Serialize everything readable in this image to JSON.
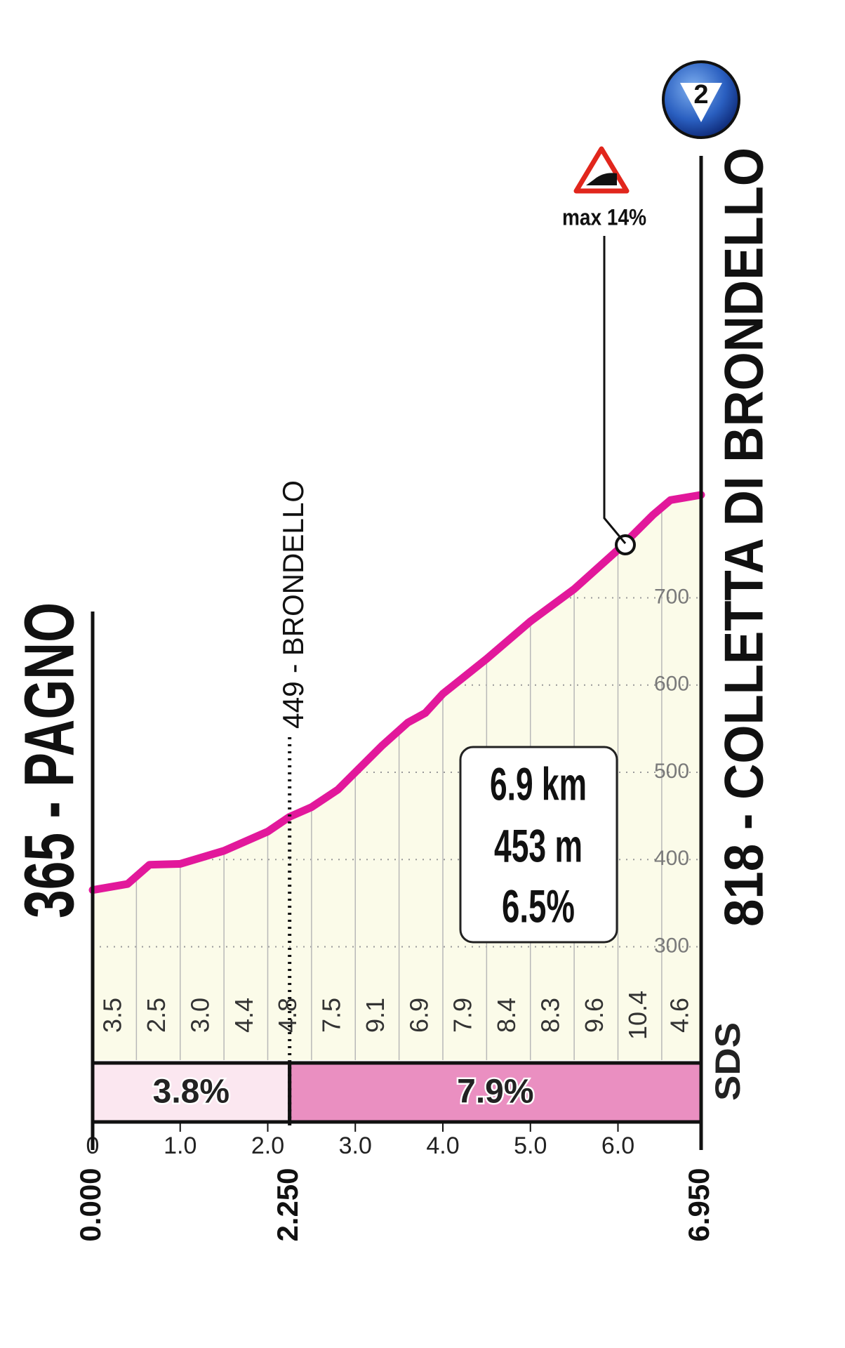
{
  "chart_data": {
    "type": "area",
    "start_label": "365 - PAGNO",
    "finish_label": "818 - COLLETTA DI BRONDELLO",
    "waypoint_label": "449 - BRONDELLO",
    "max_label": "max 14%",
    "kom": "2",
    "logo": "SDS",
    "summary": [
      "6.9 km",
      "453 m",
      "6.5%"
    ],
    "x": [
      0,
      0.4,
      0.65,
      1.0,
      1.5,
      2.0,
      2.25,
      2.5,
      2.8,
      3.0,
      3.3,
      3.6,
      3.8,
      4.0,
      4.5,
      5.0,
      5.5,
      6.0,
      6.1,
      6.4,
      6.6,
      6.95
    ],
    "values": [
      365,
      372,
      394,
      395,
      410,
      432,
      449,
      460,
      480,
      500,
      530,
      557,
      568,
      590,
      630,
      673,
      710,
      755,
      765,
      795,
      812,
      818
    ],
    "color": "#e2189b",
    "fill": "#fbfbe9",
    "xlim": [
      0,
      6.95
    ],
    "ylim": [
      170,
      900
    ],
    "xticks": [
      0,
      {
        "value": 1,
        "label": "1.0"
      },
      {
        "value": 2,
        "label": "2.0"
      },
      {
        "value": 3,
        "label": "3.0"
      },
      {
        "value": 4,
        "label": "4.0"
      },
      {
        "value": 5,
        "label": "5.0"
      },
      {
        "value": 6,
        "label": "6.0"
      }
    ],
    "yticks": [
      300,
      400,
      500,
      600,
      700
    ],
    "grid": true,
    "segment_gradients": {
      "bins": [
        0,
        0.5,
        1,
        1.5,
        2,
        2.5,
        3,
        3.5,
        4,
        4.5,
        5,
        5.5,
        6,
        6.5,
        6.95
      ],
      "values": [
        3.5,
        2.5,
        3.0,
        4.4,
        4.8,
        7.5,
        9.1,
        6.9,
        7.9,
        8.4,
        8.3,
        9.6,
        10.4,
        4.6
      ],
      "value_labels": [
        "3.5",
        "2.5",
        "3.0",
        "4.4",
        "4.8",
        "7.5",
        "9.1",
        "6.9",
        "7.9",
        "8.4",
        "8.3",
        "9.6",
        "10.4",
        "4.6"
      ]
    },
    "gradient_sections": {
      "bins": [
        0,
        2.25,
        6.95
      ],
      "values": [
        3.8,
        7.9
      ],
      "value_labels": [
        "3.8%",
        "7.9%"
      ],
      "colors": [
        "#fbe7f0",
        "#ea8fc1"
      ]
    },
    "distance_markers": [
      {
        "value": 0,
        "label": "0.000"
      },
      {
        "value": 2.25,
        "label": "2.250"
      },
      {
        "value": 6.95,
        "label": "6.950"
      }
    ]
  }
}
